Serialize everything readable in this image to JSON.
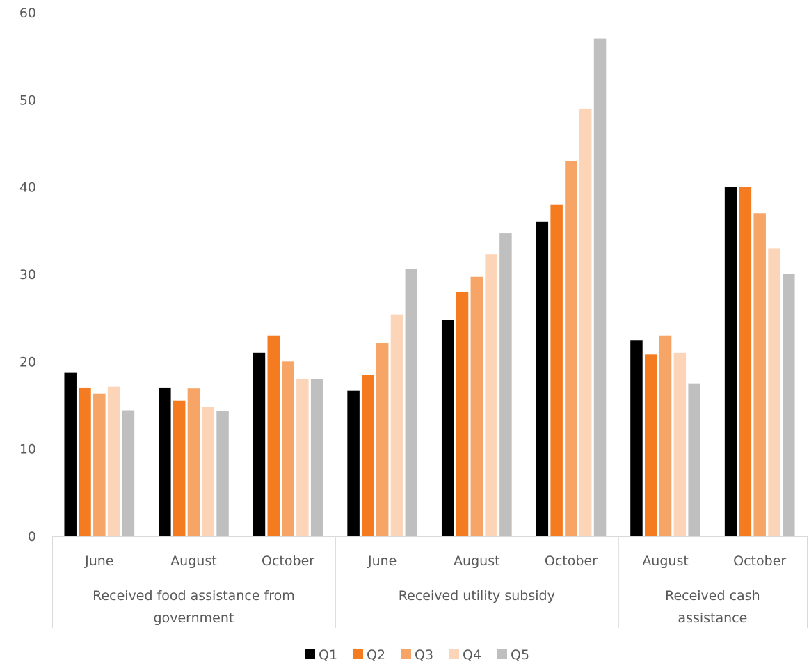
{
  "chart_data": {
    "type": "bar",
    "title": "",
    "xlabel": "",
    "ylabel": "",
    "ylim": [
      0,
      60
    ],
    "yticks": [
      0,
      10,
      20,
      30,
      40,
      50,
      60
    ],
    "grid": false,
    "legend_position": "bottom",
    "groups": [
      {
        "label": "Received food assistance from government",
        "lines": [
          "Received food assistance from",
          "government"
        ],
        "categories": [
          "June",
          "August",
          "October"
        ]
      },
      {
        "label": "Received utility subsidy",
        "lines": [
          "Received utility subsidy"
        ],
        "categories": [
          "June",
          "August",
          "October"
        ]
      },
      {
        "label": "Received cash assistance",
        "lines": [
          "Received cash",
          "assistance"
        ],
        "categories": [
          "August",
          "October"
        ]
      }
    ],
    "categories": [
      "June",
      "August",
      "October",
      "June",
      "August",
      "October",
      "August",
      "October"
    ],
    "series": [
      {
        "name": "Q1",
        "color": "#000000",
        "values": [
          18.7,
          17.0,
          21.0,
          16.7,
          24.8,
          36.0,
          22.4,
          40.0
        ]
      },
      {
        "name": "Q2",
        "color": "#f47b20",
        "values": [
          17.0,
          15.5,
          23.0,
          18.5,
          28.0,
          38.0,
          20.8,
          40.0
        ]
      },
      {
        "name": "Q3",
        "color": "#f6a566",
        "values": [
          16.3,
          16.9,
          20.0,
          22.1,
          29.7,
          43.0,
          23.0,
          37.0
        ]
      },
      {
        "name": "Q4",
        "color": "#fcd5b8",
        "values": [
          17.1,
          14.8,
          18.0,
          25.4,
          32.3,
          49.0,
          21.0,
          33.0
        ]
      },
      {
        "name": "Q5",
        "color": "#bfbfbf",
        "values": [
          14.4,
          14.3,
          18.0,
          30.6,
          34.7,
          57.0,
          17.5,
          30.0
        ]
      }
    ]
  }
}
